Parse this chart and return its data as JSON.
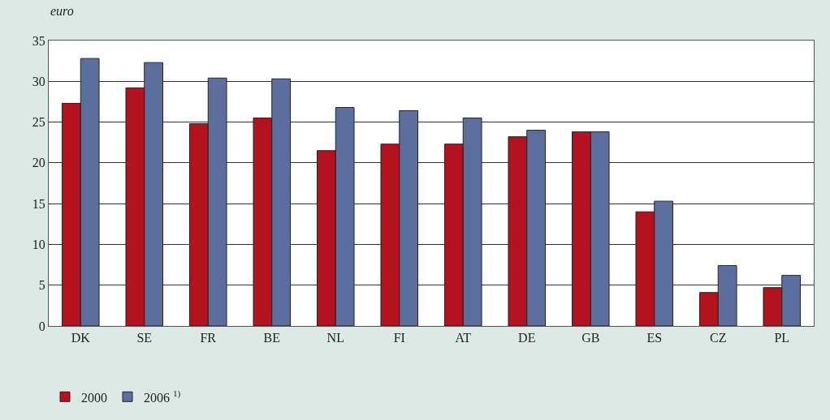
{
  "chart_data": {
    "type": "bar",
    "ylabel": "euro",
    "categories": [
      "DK",
      "SE",
      "FR",
      "BE",
      "NL",
      "FI",
      "AT",
      "DE",
      "GB",
      "ES",
      "CZ",
      "PL"
    ],
    "series": [
      {
        "name": "2000",
        "color": "#b3121e",
        "values": [
          27.3,
          29.2,
          24.8,
          25.5,
          21.5,
          22.3,
          22.3,
          23.2,
          23.8,
          14.0,
          4.1,
          4.7
        ]
      },
      {
        "name": "2006 $^{1)}$",
        "color": "#5b6e9e",
        "values": [
          32.8,
          32.3,
          30.4,
          30.3,
          26.8,
          26.4,
          25.5,
          24.0,
          23.8,
          15.3,
          7.4,
          6.2
        ]
      }
    ],
    "ylim": [
      0,
      35
    ],
    "yticks": [
      0,
      5,
      10,
      15,
      20,
      25,
      30,
      35
    ],
    "grid": "y",
    "legend": "bottom left"
  }
}
